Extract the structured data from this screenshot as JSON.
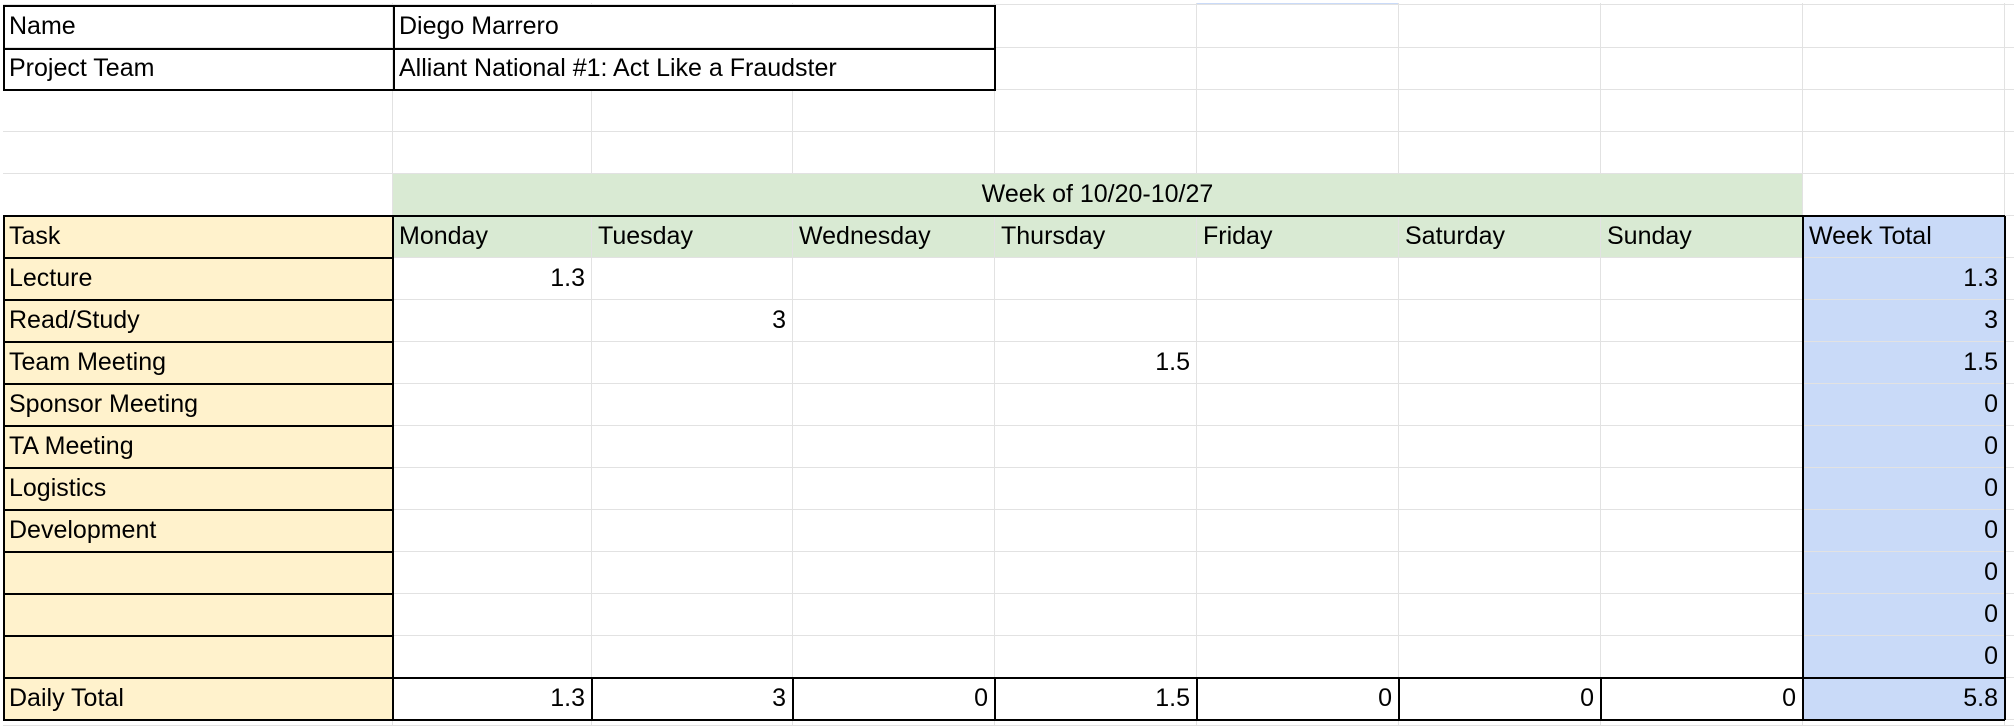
{
  "info": {
    "name_label": "Name",
    "name_value": "Diego Marrero",
    "team_label": "Project Team",
    "team_value": "Alliant National #1: Act Like a Fraudster"
  },
  "week_header": "Week of 10/20-10/27",
  "columns": {
    "task": "Task",
    "days": [
      "Monday",
      "Tuesday",
      "Wednesday",
      "Thursday",
      "Friday",
      "Saturday",
      "Sunday"
    ],
    "week_total": "Week Total"
  },
  "rows": [
    {
      "task": "Lecture",
      "days": [
        "1.3",
        "",
        "",
        "",
        "",
        "",
        ""
      ],
      "total": "1.3"
    },
    {
      "task": "Read/Study",
      "days": [
        "",
        "3",
        "",
        "",
        "",
        "",
        ""
      ],
      "total": "3"
    },
    {
      "task": "Team Meeting",
      "days": [
        "",
        "",
        "",
        "1.5",
        "",
        "",
        ""
      ],
      "total": "1.5"
    },
    {
      "task": "Sponsor Meeting",
      "days": [
        "",
        "",
        "",
        "",
        "",
        "",
        ""
      ],
      "total": "0"
    },
    {
      "task": "TA Meeting",
      "days": [
        "",
        "",
        "",
        "",
        "",
        "",
        ""
      ],
      "total": "0"
    },
    {
      "task": "Logistics",
      "days": [
        "",
        "",
        "",
        "",
        "",
        "",
        ""
      ],
      "total": "0"
    },
    {
      "task": "Development",
      "days": [
        "",
        "",
        "",
        "",
        "",
        "",
        ""
      ],
      "total": "0"
    },
    {
      "task": "",
      "days": [
        "",
        "",
        "",
        "",
        "",
        "",
        ""
      ],
      "total": "0"
    },
    {
      "task": "",
      "days": [
        "",
        "",
        "",
        "",
        "",
        "",
        ""
      ],
      "total": "0"
    },
    {
      "task": "",
      "days": [
        "",
        "",
        "",
        "",
        "",
        "",
        ""
      ],
      "total": "0"
    }
  ],
  "daily_total": {
    "label": "Daily Total",
    "days": [
      "1.3",
      "3",
      "0",
      "1.5",
      "0",
      "0",
      "0"
    ],
    "total": "5.8"
  }
}
